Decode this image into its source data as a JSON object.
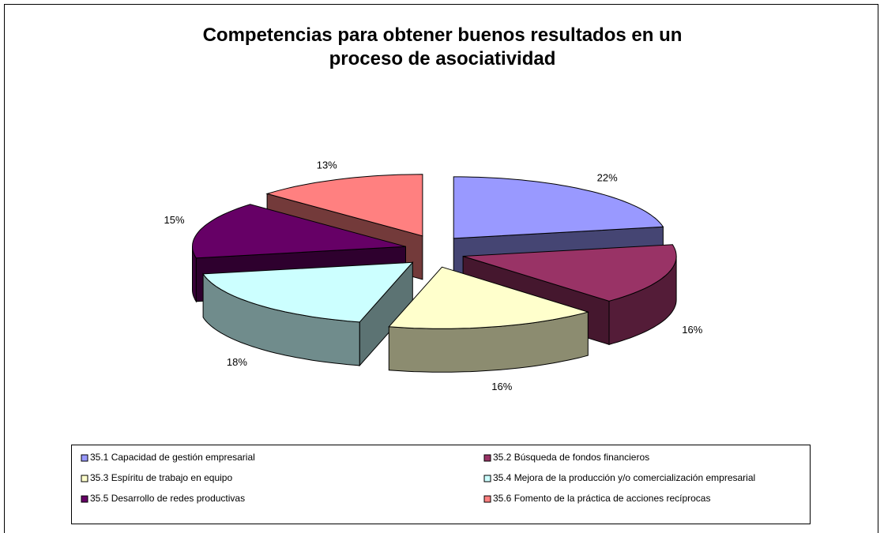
{
  "chart_data": {
    "type": "pie3d",
    "title": "Competencias para obtener buenos resultados en un proceso de asociatividad",
    "categories": [
      "35.1 Capacidad de gestión empresarial",
      "35.2 Búsqueda de fondos financieros",
      "35.3 Espíritu de trabajo en equipo",
      "35.4 Mejora de la producción y/o comercialización empresarial",
      "35.5 Desarrollo de redes productivas",
      "35.6 Fomento de la práctica de acciones recíprocas"
    ],
    "values": [
      22,
      16,
      16,
      18,
      15,
      13
    ],
    "value_labels": [
      "22%",
      "16%",
      "16%",
      "18%",
      "15%",
      "13%"
    ],
    "colors": [
      "#9999ff",
      "#993366",
      "#ffffcc",
      "#ccffff",
      "#660066",
      "#ff8080"
    ],
    "legend": "bottom"
  }
}
